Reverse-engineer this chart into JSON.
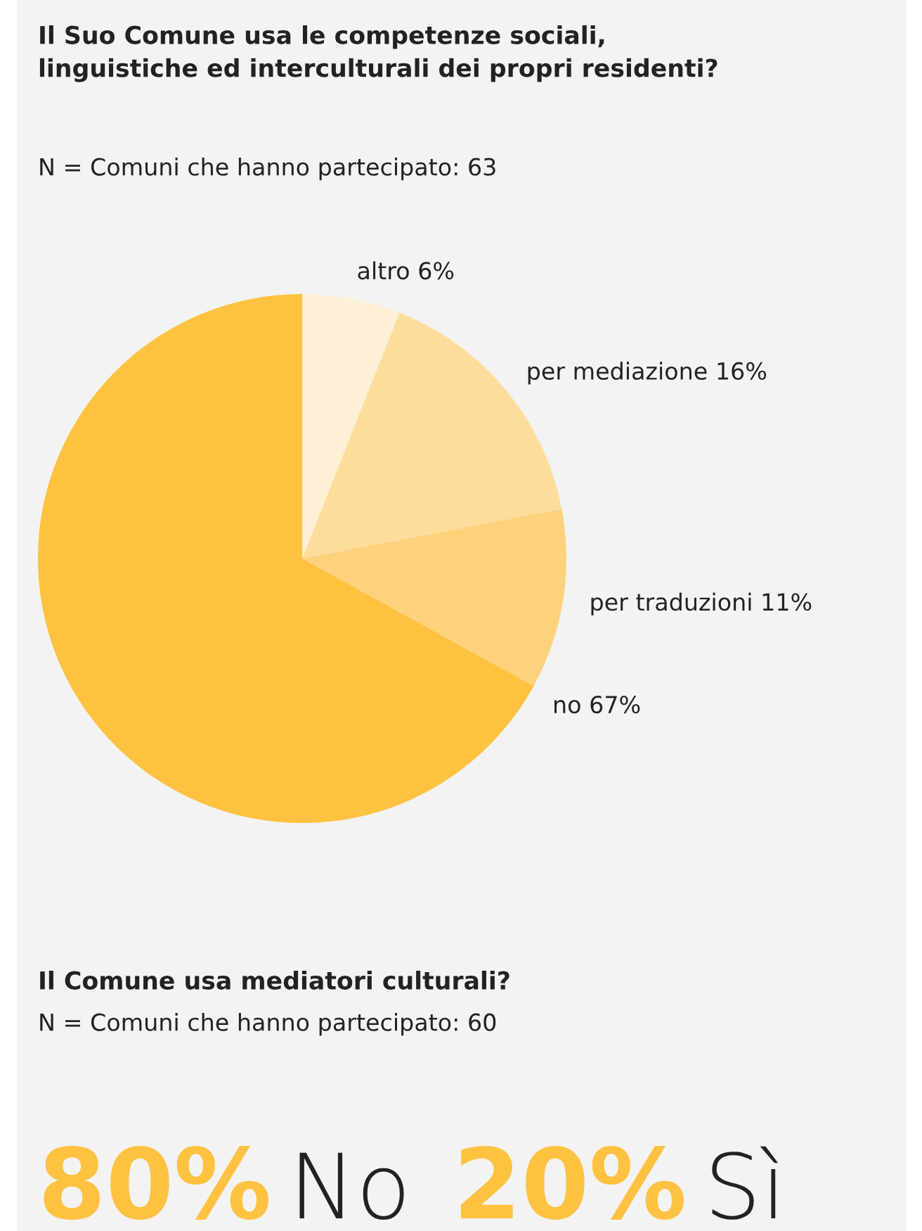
{
  "chart_data": [
    {
      "type": "pie",
      "title": "Il Suo Comune usa le competenze sociali,\nlinguistiche ed interculturali dei propri residenti?",
      "subtitle": "N = Comuni che hanno partecipato: 63",
      "categories": [
        "altro",
        "per mediazione",
        "per traduzioni",
        "no"
      ],
      "values": [
        6,
        16,
        11,
        67
      ],
      "value_labels": [
        "6%",
        "16%",
        "11%",
        "67%"
      ],
      "colors": [
        "#fef0d6",
        "#fedd9c",
        "#fed27d",
        "#fec140"
      ]
    },
    {
      "type": "other",
      "title": "Il Comune usa mediatori culturali?",
      "subtitle": "N = Comuni che hanno partecipato: 60",
      "categories": [
        "No",
        "Sì"
      ],
      "values": [
        80,
        20
      ],
      "value_labels": [
        "80%",
        "20%"
      ],
      "color": "#fec140"
    }
  ]
}
